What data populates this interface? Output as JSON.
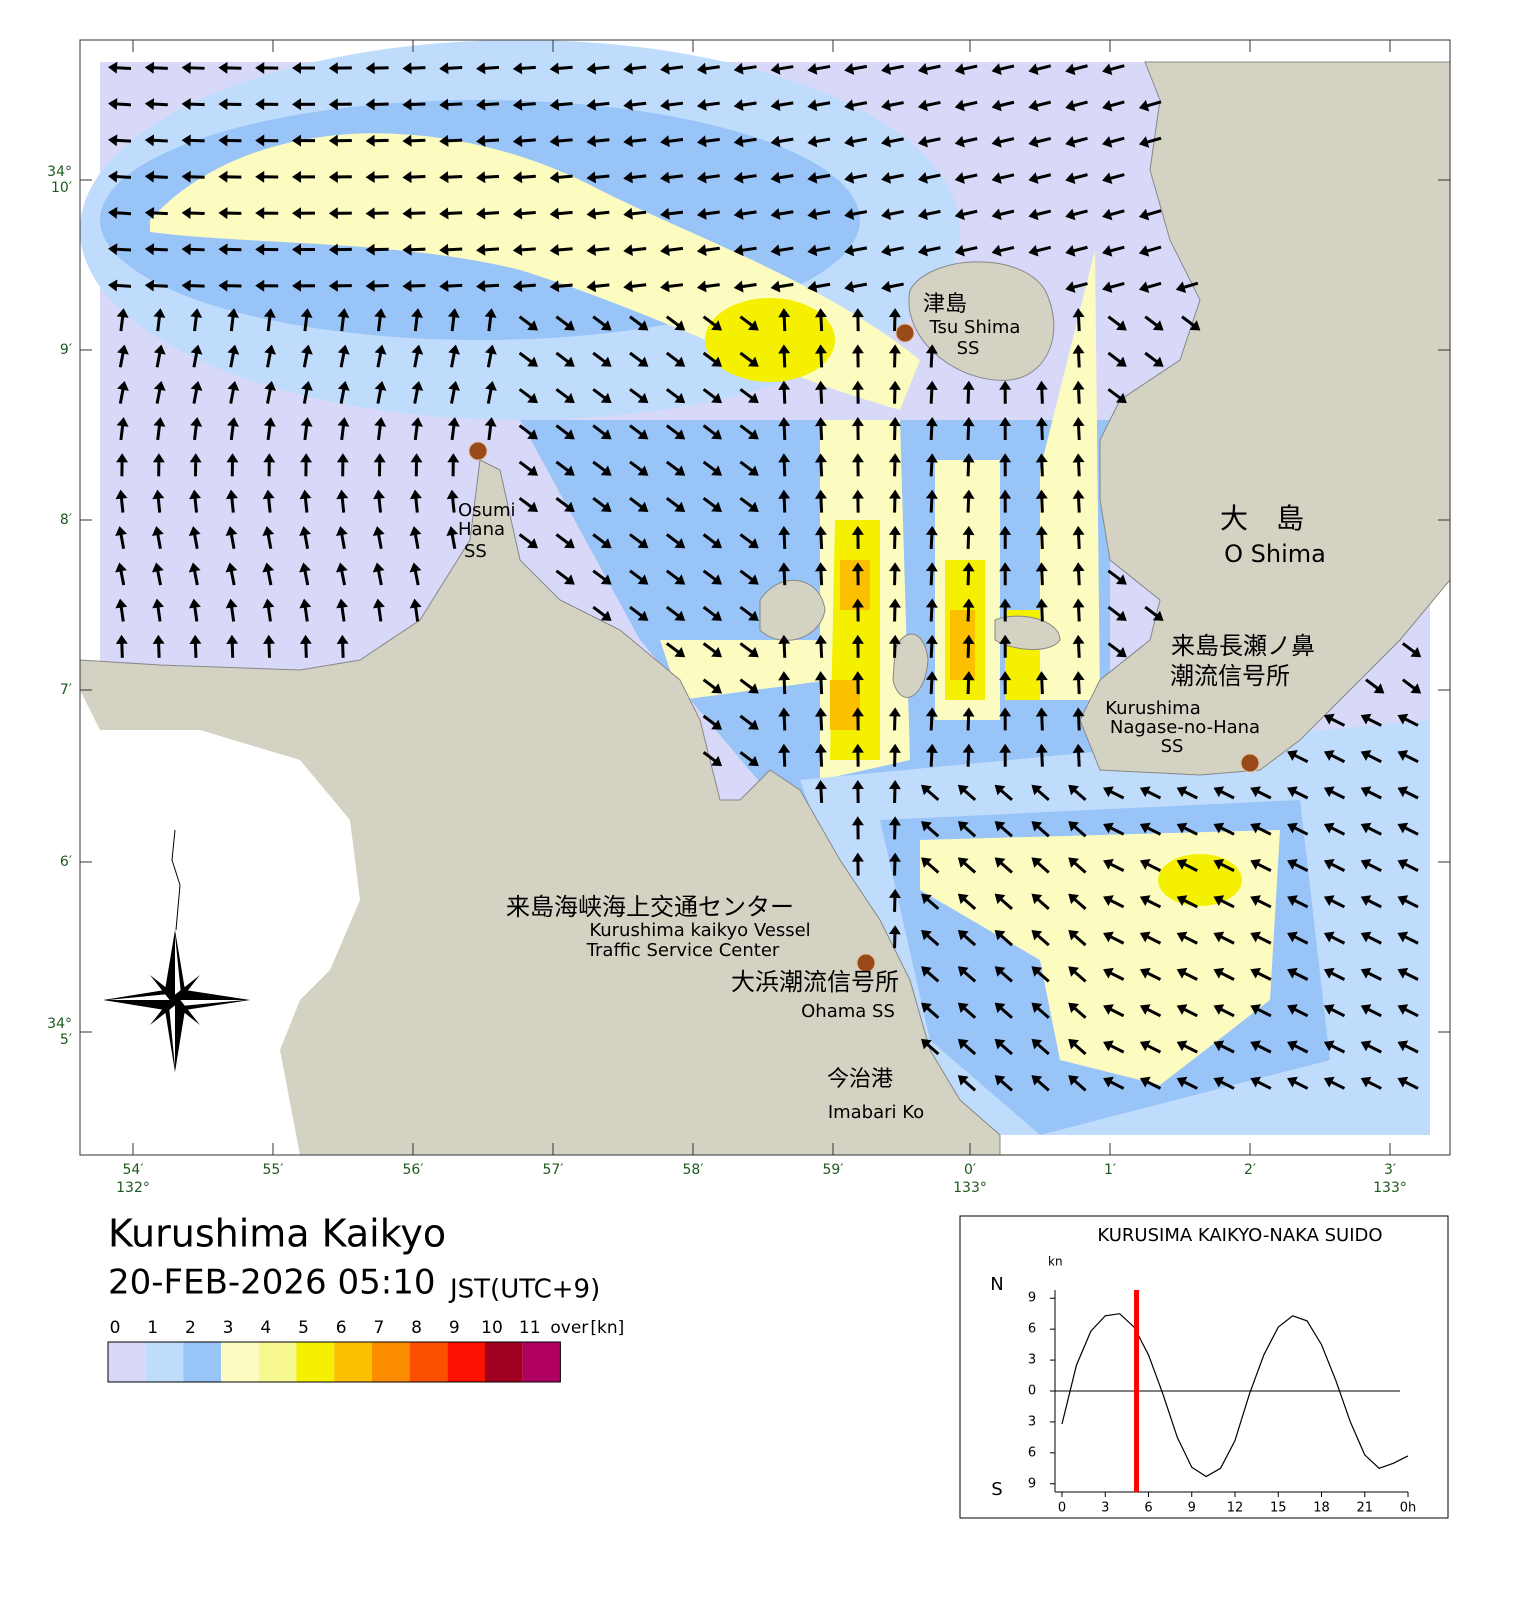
{
  "title": "Kurushima Kaikyo",
  "datetime": "20-FEB-2026 05:10",
  "timezone": "JST(UTC+9)",
  "legend": {
    "levels": [
      0,
      1,
      2,
      3,
      4,
      5,
      6,
      7,
      8,
      9,
      10,
      11
    ],
    "over_label": "over",
    "unit": "[kn]",
    "colors": [
      "#d8d8f8",
      "#c0dcfc",
      "#98c4f8",
      "#fcfcc0",
      "#f8f890",
      "#f4f000",
      "#fcc000",
      "#fc8c00",
      "#fc5000",
      "#fc1000",
      "#a00020",
      "#b00060"
    ]
  },
  "map": {
    "lat_ticks": [
      [
        "34°",
        "10′"
      ],
      [
        "9′"
      ],
      [
        "8′"
      ],
      [
        "7′"
      ],
      [
        "6′"
      ],
      [
        "34°",
        "5′"
      ]
    ],
    "lon_ticks": [
      [
        "54′",
        "132°"
      ],
      [
        "55′"
      ],
      [
        "56′"
      ],
      [
        "57′"
      ],
      [
        "58′"
      ],
      [
        "59′"
      ],
      [
        "0′",
        "133°"
      ],
      [
        "1′"
      ],
      [
        "2′"
      ],
      [
        "3′",
        "133°"
      ]
    ],
    "places": [
      {
        "lines": [
          "津島",
          "Tsu Shima",
          "SS"
        ]
      },
      {
        "lines": [
          "Osumi",
          "Hana",
          "SS"
        ]
      },
      {
        "lines": [
          "大　島",
          "O Shima"
        ]
      },
      {
        "lines": [
          "来島長瀬ノ鼻",
          "潮流信号所",
          "Kurushima",
          "Nagase-no-Hana",
          "SS"
        ]
      },
      {
        "lines": [
          "来島海峡海上交通センター",
          "Kurushima kaikyo Vessel",
          "Traffic Service Center"
        ]
      },
      {
        "lines": [
          "大浜潮流信号所",
          "Ohama SS"
        ]
      },
      {
        "lines": [
          "今治港",
          "Imabari Ko"
        ]
      }
    ]
  },
  "chart_data": {
    "type": "line",
    "title": "KURUSIMA KAIKYO-NAKA SUIDO",
    "y_unit": "kn",
    "north_label": "N",
    "south_label": "S",
    "x": [
      0,
      1,
      2,
      3,
      4,
      5,
      6,
      7,
      8,
      9,
      10,
      11,
      12,
      13,
      14,
      15,
      16,
      17,
      18,
      19,
      20,
      21,
      22,
      23,
      24
    ],
    "values": [
      -3.2,
      2.5,
      5.8,
      7.3,
      7.5,
      6.2,
      3.5,
      -0.3,
      -4.5,
      -7.4,
      -8.3,
      -7.5,
      -4.8,
      -0.3,
      3.5,
      6.2,
      7.3,
      6.8,
      4.5,
      1.0,
      -3.0,
      -6.2,
      -7.5,
      -7.0,
      -6.3
    ],
    "color": "#000000",
    "marker_x": 5.17,
    "marker_color": "#ff0000",
    "xlim": [
      0,
      24
    ],
    "ylim": [
      -9.8,
      9.8
    ],
    "xticks": [
      0,
      3,
      6,
      9,
      12,
      15,
      18,
      21,
      {
        "value": 24,
        "label": "0h"
      }
    ],
    "yticks": [
      {
        "value": -9,
        "label": "9"
      },
      {
        "value": -6,
        "label": "6"
      },
      {
        "value": -3,
        "label": "3"
      },
      0,
      3,
      6,
      9
    ]
  }
}
